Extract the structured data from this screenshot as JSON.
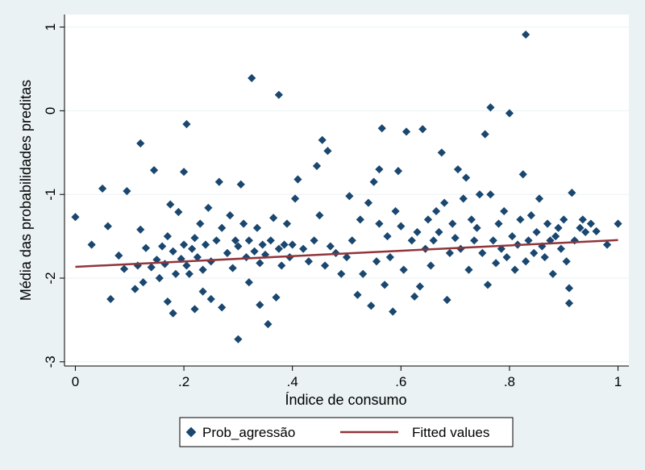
{
  "chart_data": {
    "type": "scatter",
    "xlabel": "Índice de consumo",
    "ylabel": "Média das probabilidades preditas",
    "xlim": [
      -0.02,
      1.02
    ],
    "ylim": [
      -3.05,
      1.15
    ],
    "x_ticks": [
      0,
      0.2,
      0.4,
      0.6,
      0.8,
      1
    ],
    "x_tick_labels": [
      "0",
      ".2",
      ".4",
      ".6",
      ".8",
      "1"
    ],
    "y_ticks": [
      -3,
      -2,
      -1,
      0,
      1
    ],
    "y_tick_labels": [
      "-3",
      "-2",
      "-1",
      "0",
      "1"
    ],
    "grid": "horizontal",
    "legend_position": "bottom",
    "colors": {
      "background": "#eaf2f3",
      "plot_area": "#ffffff",
      "grid": "#eaf2f3",
      "points": "#1a476f",
      "fit_line": "#90353b"
    },
    "series": [
      {
        "name": "Prob_agressão",
        "kind": "scatter",
        "marker": "diamond",
        "points": [
          [
            0.0,
            -1.27
          ],
          [
            0.03,
            -1.6
          ],
          [
            0.05,
            -0.93
          ],
          [
            0.06,
            -1.38
          ],
          [
            0.065,
            -2.25
          ],
          [
            0.08,
            -1.73
          ],
          [
            0.09,
            -1.89
          ],
          [
            0.095,
            -0.96
          ],
          [
            0.11,
            -2.13
          ],
          [
            0.115,
            -1.85
          ],
          [
            0.12,
            -1.42
          ],
          [
            0.12,
            -0.39
          ],
          [
            0.125,
            -2.05
          ],
          [
            0.13,
            -1.64
          ],
          [
            0.14,
            -1.87
          ],
          [
            0.145,
            -0.71
          ],
          [
            0.15,
            -1.78
          ],
          [
            0.155,
            -2.0
          ],
          [
            0.16,
            -1.62
          ],
          [
            0.165,
            -1.83
          ],
          [
            0.17,
            -1.5
          ],
          [
            0.17,
            -2.28
          ],
          [
            0.175,
            -1.12
          ],
          [
            0.18,
            -1.68
          ],
          [
            0.18,
            -2.42
          ],
          [
            0.185,
            -1.95
          ],
          [
            0.19,
            -1.21
          ],
          [
            0.195,
            -1.77
          ],
          [
            0.2,
            -1.6
          ],
          [
            0.2,
            -0.73
          ],
          [
            0.205,
            -1.85
          ],
          [
            0.205,
            -0.16
          ],
          [
            0.21,
            -1.95
          ],
          [
            0.215,
            -1.65
          ],
          [
            0.22,
            -2.37
          ],
          [
            0.22,
            -1.52
          ],
          [
            0.225,
            -1.75
          ],
          [
            0.23,
            -1.35
          ],
          [
            0.235,
            -1.9
          ],
          [
            0.235,
            -2.16
          ],
          [
            0.24,
            -1.6
          ],
          [
            0.245,
            -1.16
          ],
          [
            0.25,
            -2.25
          ],
          [
            0.25,
            -1.8
          ],
          [
            0.26,
            -1.55
          ],
          [
            0.265,
            -0.85
          ],
          [
            0.27,
            -1.4
          ],
          [
            0.27,
            -2.35
          ],
          [
            0.28,
            -1.7
          ],
          [
            0.285,
            -1.25
          ],
          [
            0.29,
            -1.88
          ],
          [
            0.295,
            -1.55
          ],
          [
            0.3,
            -1.62
          ],
          [
            0.3,
            -2.73
          ],
          [
            0.305,
            -0.88
          ],
          [
            0.31,
            -1.35
          ],
          [
            0.315,
            -1.75
          ],
          [
            0.32,
            -2.05
          ],
          [
            0.32,
            -1.55
          ],
          [
            0.325,
            0.39
          ],
          [
            0.33,
            -1.68
          ],
          [
            0.335,
            -1.4
          ],
          [
            0.34,
            -1.82
          ],
          [
            0.34,
            -2.32
          ],
          [
            0.345,
            -1.6
          ],
          [
            0.35,
            -1.72
          ],
          [
            0.355,
            -2.55
          ],
          [
            0.36,
            -1.55
          ],
          [
            0.365,
            -1.28
          ],
          [
            0.37,
            -2.23
          ],
          [
            0.375,
            -1.65
          ],
          [
            0.375,
            0.19
          ],
          [
            0.38,
            -1.85
          ],
          [
            0.385,
            -1.6
          ],
          [
            0.39,
            -1.35
          ],
          [
            0.395,
            -1.75
          ],
          [
            0.4,
            -1.6
          ],
          [
            0.405,
            -1.05
          ],
          [
            0.41,
            -0.82
          ],
          [
            0.42,
            -1.65
          ],
          [
            0.43,
            -1.8
          ],
          [
            0.44,
            -1.55
          ],
          [
            0.445,
            -0.66
          ],
          [
            0.45,
            -1.25
          ],
          [
            0.455,
            -0.35
          ],
          [
            0.46,
            -1.85
          ],
          [
            0.465,
            -0.48
          ],
          [
            0.47,
            -1.62
          ],
          [
            0.48,
            -1.7
          ],
          [
            0.49,
            -1.95
          ],
          [
            0.5,
            -1.75
          ],
          [
            0.505,
            -1.02
          ],
          [
            0.51,
            -1.55
          ],
          [
            0.52,
            -2.2
          ],
          [
            0.525,
            -1.3
          ],
          [
            0.53,
            -1.95
          ],
          [
            0.54,
            -1.1
          ],
          [
            0.545,
            -2.33
          ],
          [
            0.55,
            -0.85
          ],
          [
            0.555,
            -1.8
          ],
          [
            0.56,
            -0.7
          ],
          [
            0.56,
            -1.35
          ],
          [
            0.565,
            -0.21
          ],
          [
            0.57,
            -2.08
          ],
          [
            0.575,
            -1.5
          ],
          [
            0.58,
            -1.75
          ],
          [
            0.585,
            -2.4
          ],
          [
            0.59,
            -1.2
          ],
          [
            0.595,
            -0.72
          ],
          [
            0.6,
            -1.38
          ],
          [
            0.605,
            -1.9
          ],
          [
            0.61,
            -0.25
          ],
          [
            0.62,
            -1.55
          ],
          [
            0.625,
            -2.22
          ],
          [
            0.63,
            -1.45
          ],
          [
            0.635,
            -2.1
          ],
          [
            0.64,
            -0.22
          ],
          [
            0.645,
            -1.65
          ],
          [
            0.65,
            -1.3
          ],
          [
            0.655,
            -1.85
          ],
          [
            0.66,
            -1.55
          ],
          [
            0.665,
            -1.2
          ],
          [
            0.67,
            -1.45
          ],
          [
            0.675,
            -0.5
          ],
          [
            0.68,
            -1.1
          ],
          [
            0.685,
            -2.26
          ],
          [
            0.69,
            -1.7
          ],
          [
            0.695,
            -1.35
          ],
          [
            0.7,
            -1.52
          ],
          [
            0.705,
            -0.7
          ],
          [
            0.71,
            -1.65
          ],
          [
            0.715,
            -1.05
          ],
          [
            0.72,
            -0.8
          ],
          [
            0.725,
            -1.9
          ],
          [
            0.73,
            -1.3
          ],
          [
            0.735,
            -1.55
          ],
          [
            0.74,
            -1.4
          ],
          [
            0.745,
            -1.0
          ],
          [
            0.75,
            -1.7
          ],
          [
            0.755,
            -0.28
          ],
          [
            0.76,
            -2.08
          ],
          [
            0.765,
            0.04
          ],
          [
            0.765,
            -1.0
          ],
          [
            0.77,
            -1.55
          ],
          [
            0.775,
            -1.82
          ],
          [
            0.78,
            -1.35
          ],
          [
            0.785,
            -1.65
          ],
          [
            0.79,
            -1.2
          ],
          [
            0.795,
            -1.75
          ],
          [
            0.8,
            -0.03
          ],
          [
            0.805,
            -1.5
          ],
          [
            0.81,
            -1.9
          ],
          [
            0.815,
            -1.6
          ],
          [
            0.82,
            -1.3
          ],
          [
            0.825,
            -0.76
          ],
          [
            0.83,
            0.91
          ],
          [
            0.83,
            -1.8
          ],
          [
            0.835,
            -1.55
          ],
          [
            0.84,
            -1.25
          ],
          [
            0.845,
            -1.7
          ],
          [
            0.85,
            -1.45
          ],
          [
            0.855,
            -1.05
          ],
          [
            0.86,
            -1.62
          ],
          [
            0.865,
            -1.75
          ],
          [
            0.87,
            -1.35
          ],
          [
            0.875,
            -1.55
          ],
          [
            0.88,
            -1.95
          ],
          [
            0.885,
            -1.5
          ],
          [
            0.89,
            -1.4
          ],
          [
            0.895,
            -1.65
          ],
          [
            0.9,
            -1.3
          ],
          [
            0.905,
            -1.8
          ],
          [
            0.91,
            -2.12
          ],
          [
            0.91,
            -2.3
          ],
          [
            0.915,
            -0.98
          ],
          [
            0.92,
            -1.55
          ],
          [
            0.93,
            -1.4
          ],
          [
            0.935,
            -1.3
          ],
          [
            0.94,
            -1.45
          ],
          [
            0.95,
            -1.35
          ],
          [
            0.96,
            -1.44
          ],
          [
            0.98,
            -1.6
          ],
          [
            1.0,
            -1.35
          ]
        ]
      },
      {
        "name": "Fitted values",
        "kind": "line",
        "points": [
          [
            0.0,
            -1.865
          ],
          [
            1.0,
            -1.545
          ]
        ]
      }
    ]
  }
}
